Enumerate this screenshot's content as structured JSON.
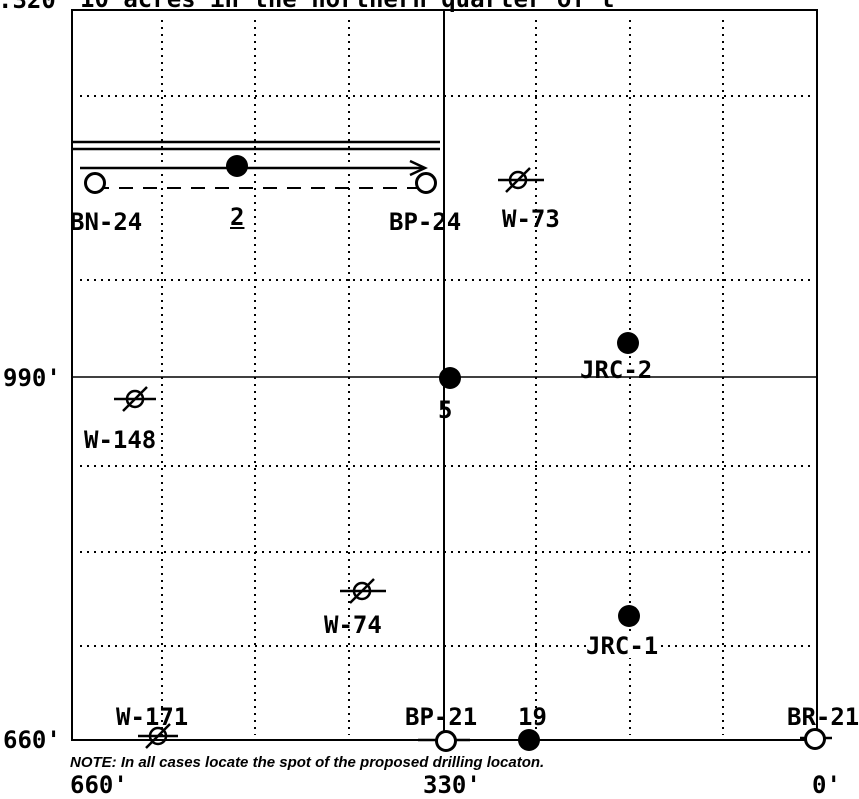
{
  "header": {
    "text": "10 acres in the northern quarter of t",
    "corner_label": ".320"
  },
  "axes": {
    "y_labels": {
      "y990": "990'",
      "y660": "660'"
    },
    "x_labels": {
      "x660": "660'",
      "x330": "330'",
      "x0": "0'"
    }
  },
  "wells": {
    "bn24": "BN-24",
    "two": "2",
    "bp24": "BP-24",
    "w73": "W-73",
    "jrc2": "JRC-2",
    "five": "5",
    "w148": "W-148",
    "w74": "W-74",
    "jrc1": "JRC-1",
    "w171": "W-171",
    "bp21": "BP-21",
    "nineteen": "19",
    "br21": "BR-21"
  },
  "note": "NOTE: In all cases locate the spot of the proposed drilling locaton."
}
